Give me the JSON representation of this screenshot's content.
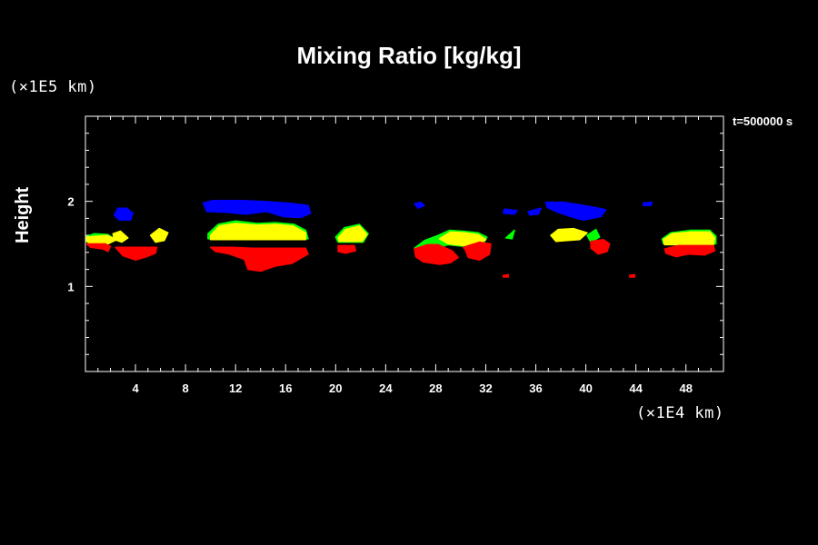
{
  "title": "Mixing Ratio [kg/kg]",
  "y_unit": "(×1E5 km)",
  "x_unit": "(×1E4 km)",
  "time_label": "t=500000 s",
  "chart_data": {
    "type": "heatmap",
    "title": "Mixing Ratio [kg/kg]",
    "xlabel": "",
    "ylabel": "Height",
    "xlim": [
      0,
      51
    ],
    "ylim": [
      0,
      3
    ],
    "x_ticks": [
      4,
      8,
      12,
      16,
      20,
      24,
      28,
      32,
      36,
      40,
      44,
      48
    ],
    "y_ticks": [
      1,
      2
    ],
    "grid": false,
    "colors": {
      "blue": "#0000ff",
      "green": "#00ff00",
      "yellow": "#ffff00",
      "red": "#ff0000"
    },
    "regions": [
      {
        "color": "blue",
        "points": [
          [
            2.3,
            1.84
          ],
          [
            2.6,
            1.92
          ],
          [
            3.3,
            1.92
          ],
          [
            3.8,
            1.86
          ],
          [
            3.6,
            1.78
          ],
          [
            2.7,
            1.78
          ]
        ]
      },
      {
        "color": "blue",
        "points": [
          [
            9.4,
            1.98
          ],
          [
            10.2,
            2.01
          ],
          [
            12.5,
            2.01
          ],
          [
            14.2,
            2.0
          ],
          [
            16.2,
            1.98
          ],
          [
            17.8,
            1.95
          ],
          [
            18.0,
            1.86
          ],
          [
            17.2,
            1.81
          ],
          [
            15.8,
            1.82
          ],
          [
            14.5,
            1.88
          ],
          [
            12.8,
            1.85
          ],
          [
            11.3,
            1.87
          ],
          [
            9.7,
            1.88
          ]
        ]
      },
      {
        "color": "blue",
        "points": [
          [
            26.3,
            1.97
          ],
          [
            26.8,
            1.99
          ],
          [
            27.1,
            1.95
          ],
          [
            26.6,
            1.92
          ]
        ]
      },
      {
        "color": "blue",
        "points": [
          [
            33.5,
            1.91
          ],
          [
            34.5,
            1.89
          ],
          [
            34.3,
            1.85
          ],
          [
            33.4,
            1.86
          ]
        ]
      },
      {
        "color": "blue",
        "points": [
          [
            35.4,
            1.88
          ],
          [
            36.4,
            1.92
          ],
          [
            36.2,
            1.85
          ],
          [
            35.5,
            1.84
          ]
        ]
      },
      {
        "color": "blue",
        "points": [
          [
            36.8,
            1.99
          ],
          [
            38.2,
            1.99
          ],
          [
            39.5,
            1.96
          ],
          [
            40.7,
            1.93
          ],
          [
            41.6,
            1.9
          ],
          [
            41.2,
            1.82
          ],
          [
            39.8,
            1.78
          ],
          [
            38.8,
            1.82
          ],
          [
            37.6,
            1.88
          ],
          [
            36.9,
            1.93
          ]
        ]
      },
      {
        "color": "blue",
        "points": [
          [
            44.6,
            1.98
          ],
          [
            45.3,
            1.99
          ],
          [
            45.2,
            1.95
          ],
          [
            44.6,
            1.95
          ]
        ]
      },
      {
        "color": "green",
        "points": [
          [
            0.1,
            1.59
          ],
          [
            0.7,
            1.62
          ],
          [
            1.8,
            1.61
          ],
          [
            2.4,
            1.55
          ],
          [
            1.8,
            1.5
          ],
          [
            0.4,
            1.5
          ],
          [
            0.1,
            1.53
          ]
        ]
      },
      {
        "color": "green",
        "points": [
          [
            9.8,
            1.62
          ],
          [
            10.6,
            1.73
          ],
          [
            12.0,
            1.77
          ],
          [
            13.7,
            1.74
          ],
          [
            15.2,
            1.75
          ],
          [
            16.7,
            1.73
          ],
          [
            17.6,
            1.66
          ],
          [
            17.8,
            1.56
          ],
          [
            9.8,
            1.56
          ]
        ]
      },
      {
        "color": "green",
        "points": [
          [
            20.0,
            1.58
          ],
          [
            20.7,
            1.69
          ],
          [
            21.9,
            1.73
          ],
          [
            22.6,
            1.62
          ],
          [
            22.2,
            1.52
          ],
          [
            20.2,
            1.52
          ]
        ]
      },
      {
        "color": "green",
        "points": [
          [
            26.3,
            1.45
          ],
          [
            27.1,
            1.54
          ],
          [
            28.2,
            1.6
          ],
          [
            29.1,
            1.66
          ],
          [
            30.2,
            1.65
          ],
          [
            31.4,
            1.63
          ],
          [
            32.1,
            1.58
          ],
          [
            31.8,
            1.5
          ],
          [
            30.3,
            1.47
          ],
          [
            29.0,
            1.49
          ],
          [
            27.5,
            1.43
          ]
        ]
      },
      {
        "color": "green",
        "points": [
          [
            33.6,
            1.57
          ],
          [
            34.3,
            1.66
          ],
          [
            34.1,
            1.56
          ]
        ]
      },
      {
        "color": "green",
        "points": [
          [
            40.1,
            1.6
          ],
          [
            40.8,
            1.67
          ],
          [
            41.1,
            1.58
          ],
          [
            40.4,
            1.52
          ]
        ]
      },
      {
        "color": "green",
        "points": [
          [
            46.1,
            1.56
          ],
          [
            46.8,
            1.63
          ],
          [
            48.4,
            1.66
          ],
          [
            49.9,
            1.66
          ],
          [
            50.4,
            1.59
          ],
          [
            50.4,
            1.5
          ],
          [
            46.2,
            1.5
          ]
        ]
      },
      {
        "color": "yellow",
        "points": [
          [
            0.1,
            1.58
          ],
          [
            1.7,
            1.6
          ],
          [
            2.5,
            1.55
          ],
          [
            1.8,
            1.5
          ],
          [
            0.4,
            1.5
          ],
          [
            0.1,
            1.53
          ]
        ]
      },
      {
        "color": "yellow",
        "points": [
          [
            2.2,
            1.62
          ],
          [
            2.8,
            1.65
          ],
          [
            3.4,
            1.57
          ],
          [
            2.9,
            1.52
          ],
          [
            2.3,
            1.55
          ]
        ]
      },
      {
        "color": "yellow",
        "points": [
          [
            5.2,
            1.6
          ],
          [
            5.9,
            1.68
          ],
          [
            6.6,
            1.63
          ],
          [
            6.3,
            1.54
          ],
          [
            5.6,
            1.52
          ]
        ]
      },
      {
        "color": "yellow",
        "points": [
          [
            10.0,
            1.6
          ],
          [
            10.7,
            1.71
          ],
          [
            12.0,
            1.74
          ],
          [
            13.7,
            1.72
          ],
          [
            15.2,
            1.73
          ],
          [
            16.6,
            1.71
          ],
          [
            17.6,
            1.63
          ],
          [
            17.6,
            1.55
          ],
          [
            10.0,
            1.55
          ]
        ]
      },
      {
        "color": "yellow",
        "points": [
          [
            20.2,
            1.57
          ],
          [
            20.8,
            1.67
          ],
          [
            21.9,
            1.71
          ],
          [
            22.5,
            1.61
          ],
          [
            22.1,
            1.53
          ],
          [
            20.3,
            1.53
          ]
        ]
      },
      {
        "color": "yellow",
        "points": [
          [
            28.3,
            1.56
          ],
          [
            29.2,
            1.64
          ],
          [
            30.3,
            1.63
          ],
          [
            31.4,
            1.61
          ],
          [
            32.0,
            1.55
          ],
          [
            31.6,
            1.51
          ],
          [
            30.3,
            1.48
          ],
          [
            29.0,
            1.5
          ]
        ]
      },
      {
        "color": "yellow",
        "points": [
          [
            37.2,
            1.6
          ],
          [
            37.8,
            1.67
          ],
          [
            39.0,
            1.68
          ],
          [
            40.1,
            1.63
          ],
          [
            39.5,
            1.55
          ],
          [
            37.6,
            1.53
          ]
        ]
      },
      {
        "color": "yellow",
        "points": [
          [
            46.2,
            1.55
          ],
          [
            46.9,
            1.62
          ],
          [
            48.4,
            1.64
          ],
          [
            49.9,
            1.64
          ],
          [
            50.3,
            1.57
          ],
          [
            50.2,
            1.49
          ],
          [
            46.3,
            1.49
          ]
        ]
      },
      {
        "color": "red",
        "points": [
          [
            0.1,
            1.5
          ],
          [
            1.6,
            1.5
          ],
          [
            2.0,
            1.47
          ],
          [
            1.8,
            1.41
          ],
          [
            1.4,
            1.44
          ],
          [
            0.4,
            1.46
          ]
        ]
      },
      {
        "color": "red",
        "points": [
          [
            2.4,
            1.46
          ],
          [
            3.0,
            1.36
          ],
          [
            4.0,
            1.31
          ],
          [
            4.9,
            1.35
          ],
          [
            5.6,
            1.39
          ],
          [
            5.7,
            1.46
          ]
        ]
      },
      {
        "color": "red",
        "points": [
          [
            10.0,
            1.46
          ],
          [
            11.7,
            1.46
          ],
          [
            13.3,
            1.45
          ],
          [
            17.6,
            1.45
          ],
          [
            17.8,
            1.38
          ],
          [
            16.5,
            1.27
          ],
          [
            15.2,
            1.24
          ],
          [
            14.0,
            1.18
          ],
          [
            13.0,
            1.2
          ],
          [
            12.7,
            1.32
          ],
          [
            11.5,
            1.38
          ],
          [
            10.4,
            1.41
          ]
        ]
      },
      {
        "color": "red",
        "points": [
          [
            20.2,
            1.48
          ],
          [
            21.5,
            1.48
          ],
          [
            21.6,
            1.42
          ],
          [
            20.8,
            1.39
          ],
          [
            20.2,
            1.41
          ]
        ]
      },
      {
        "color": "red",
        "points": [
          [
            26.3,
            1.44
          ],
          [
            27.3,
            1.49
          ],
          [
            28.2,
            1.49
          ],
          [
            29.3,
            1.42
          ],
          [
            29.8,
            1.34
          ],
          [
            29.2,
            1.28
          ],
          [
            28.3,
            1.26
          ],
          [
            27.0,
            1.29
          ],
          [
            26.4,
            1.35
          ]
        ]
      },
      {
        "color": "red",
        "points": [
          [
            30.2,
            1.46
          ],
          [
            31.5,
            1.52
          ],
          [
            32.4,
            1.5
          ],
          [
            32.3,
            1.38
          ],
          [
            31.5,
            1.31
          ],
          [
            30.6,
            1.34
          ],
          [
            30.4,
            1.42
          ]
        ]
      },
      {
        "color": "red",
        "points": [
          [
            40.4,
            1.53
          ],
          [
            41.4,
            1.55
          ],
          [
            41.9,
            1.5
          ],
          [
            41.7,
            1.41
          ],
          [
            41.0,
            1.38
          ],
          [
            40.4,
            1.45
          ]
        ]
      },
      {
        "color": "red",
        "points": [
          [
            46.3,
            1.44
          ],
          [
            47.4,
            1.48
          ],
          [
            50.2,
            1.48
          ],
          [
            50.3,
            1.42
          ],
          [
            49.5,
            1.37
          ],
          [
            48.2,
            1.38
          ],
          [
            47.2,
            1.35
          ],
          [
            46.4,
            1.39
          ]
        ]
      },
      {
        "color": "red",
        "points": [
          [
            33.4,
            1.13
          ],
          [
            33.8,
            1.14
          ],
          [
            33.8,
            1.11
          ],
          [
            33.4,
            1.11
          ]
        ]
      },
      {
        "color": "red",
        "points": [
          [
            43.5,
            1.13
          ],
          [
            43.9,
            1.14
          ],
          [
            43.9,
            1.11
          ],
          [
            43.5,
            1.11
          ]
        ]
      }
    ]
  }
}
